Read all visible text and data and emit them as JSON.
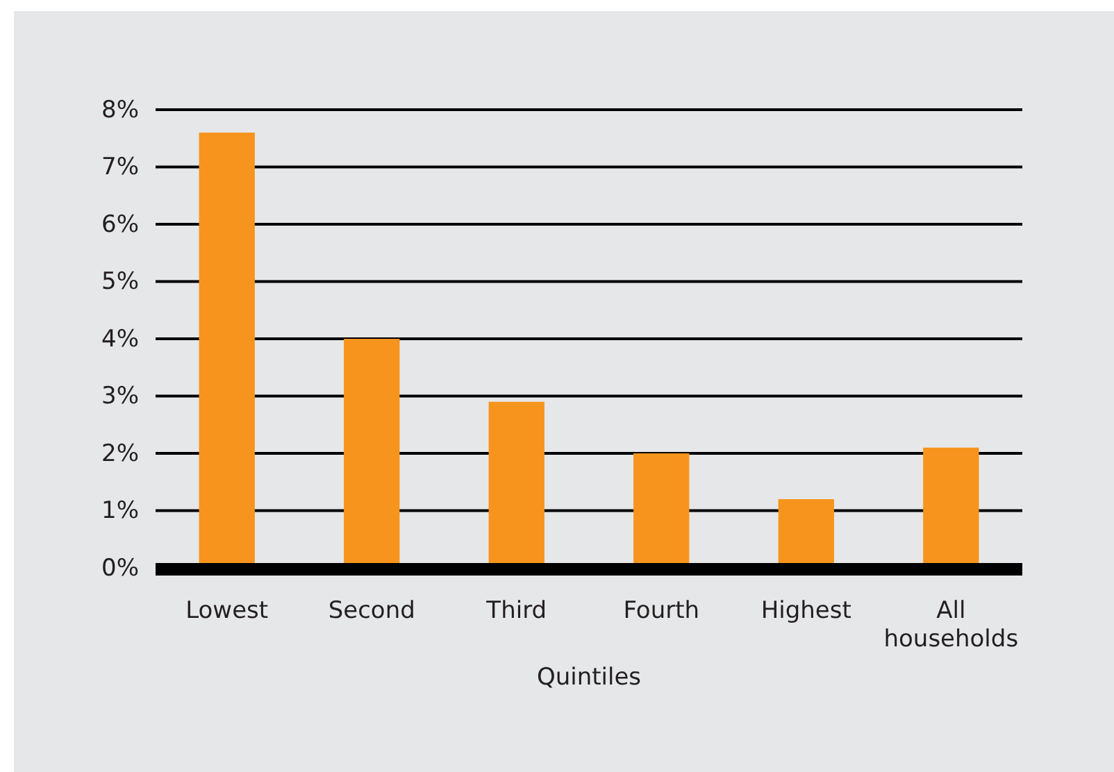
{
  "chart_data": {
    "type": "bar",
    "xlabel": "Quintiles",
    "categories": [
      "Lowest",
      "Second",
      "Third",
      "Fourth",
      "Highest",
      "All households"
    ],
    "values": [
      7.6,
      4.0,
      2.9,
      2.0,
      1.2,
      2.1
    ],
    "color": "#f7941d",
    "ylim": [
      0,
      8
    ],
    "yticks": [
      {
        "value": 0,
        "label": "0%"
      },
      {
        "value": 1,
        "label": "1%"
      },
      {
        "value": 2,
        "label": "2%"
      },
      {
        "value": 3,
        "label": "3%"
      },
      {
        "value": 4,
        "label": "4%"
      },
      {
        "value": 5,
        "label": "5%"
      },
      {
        "value": 6,
        "label": "6%"
      },
      {
        "value": 7,
        "label": "7%"
      },
      {
        "value": 8,
        "label": "8%"
      }
    ],
    "grid": "y"
  }
}
